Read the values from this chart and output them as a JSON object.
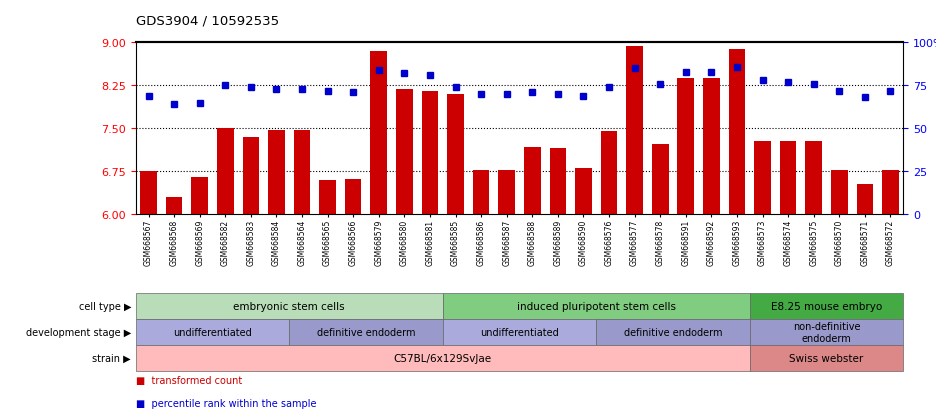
{
  "title": "GDS3904 / 10592535",
  "samples": [
    "GSM668567",
    "GSM668568",
    "GSM668569",
    "GSM668582",
    "GSM668583",
    "GSM668584",
    "GSM668564",
    "GSM668565",
    "GSM668566",
    "GSM668579",
    "GSM668580",
    "GSM668581",
    "GSM668585",
    "GSM668586",
    "GSM668587",
    "GSM668588",
    "GSM668589",
    "GSM668590",
    "GSM668576",
    "GSM668577",
    "GSM668578",
    "GSM668591",
    "GSM668592",
    "GSM668593",
    "GSM668573",
    "GSM668574",
    "GSM668575",
    "GSM668570",
    "GSM668571",
    "GSM668572"
  ],
  "bar_values": [
    6.75,
    6.3,
    6.65,
    7.5,
    7.35,
    7.48,
    7.48,
    6.6,
    6.62,
    8.85,
    8.18,
    8.15,
    8.1,
    6.78,
    6.78,
    7.18,
    7.15,
    6.8,
    7.45,
    8.93,
    7.22,
    8.38,
    8.38,
    8.88,
    7.28,
    7.28,
    7.28,
    6.78,
    6.52,
    6.78
  ],
  "dot_values": [
    69,
    64,
    65,
    75,
    74,
    73,
    73,
    72,
    71,
    84,
    82,
    81,
    74,
    70,
    70,
    71,
    70,
    69,
    74,
    85,
    76,
    83,
    83,
    86,
    78,
    77,
    76,
    72,
    68,
    72
  ],
  "ylim_left": [
    6.0,
    9.0
  ],
  "ylim_right": [
    0,
    100
  ],
  "yticks_left": [
    6.0,
    6.75,
    7.5,
    8.25,
    9.0
  ],
  "yticks_right": [
    0,
    25,
    50,
    75,
    100
  ],
  "hlines": [
    6.75,
    7.5,
    8.25
  ],
  "bar_color": "#cc0000",
  "dot_color": "#0000cc",
  "cell_type_groups": [
    {
      "label": "embryonic stem cells",
      "start": 0,
      "end": 11,
      "color": "#b8ddb8"
    },
    {
      "label": "induced pluripotent stem cells",
      "start": 12,
      "end": 23,
      "color": "#80cc80"
    },
    {
      "label": "E8.25 mouse embryo",
      "start": 24,
      "end": 29,
      "color": "#44aa44"
    }
  ],
  "dev_stage_groups": [
    {
      "label": "undifferentiated",
      "start": 0,
      "end": 5,
      "color": "#aaaadd"
    },
    {
      "label": "definitive endoderm",
      "start": 6,
      "end": 11,
      "color": "#9999cc"
    },
    {
      "label": "undifferentiated",
      "start": 12,
      "end": 17,
      "color": "#aaaadd"
    },
    {
      "label": "definitive endoderm",
      "start": 18,
      "end": 23,
      "color": "#9999cc"
    },
    {
      "label": "non-definitive\nendoderm",
      "start": 24,
      "end": 29,
      "color": "#9999cc"
    }
  ],
  "strain_groups": [
    {
      "label": "C57BL/6x129SvJae",
      "start": 0,
      "end": 23,
      "color": "#ffbbbb"
    },
    {
      "label": "Swiss webster",
      "start": 24,
      "end": 29,
      "color": "#dd8888"
    }
  ],
  "row_labels": [
    "cell type",
    "development stage",
    "strain"
  ],
  "legend_red": "transformed count",
  "legend_blue": "percentile rank within the sample"
}
